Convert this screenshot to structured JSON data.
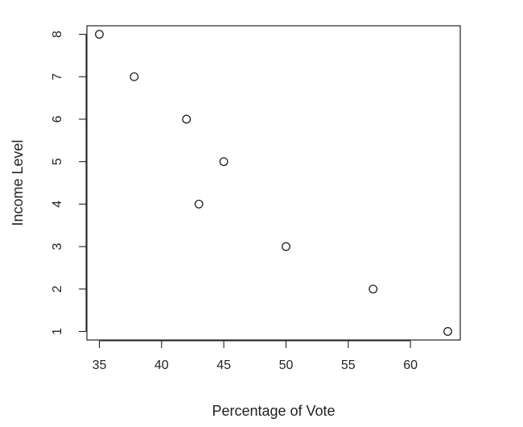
{
  "chart_data": {
    "type": "scatter",
    "title": "",
    "xlabel": "Percentage of Vote",
    "ylabel": "Income Level",
    "xlim": [
      34,
      64
    ],
    "ylim": [
      0.8,
      8.2
    ],
    "x_ticks": [
      35,
      40,
      45,
      50,
      55,
      60
    ],
    "y_ticks": [
      1,
      2,
      3,
      4,
      5,
      6,
      7,
      8
    ],
    "x_tick_labels": [
      "35",
      "40",
      "45",
      "50",
      "55",
      "60"
    ],
    "y_tick_labels": [
      "1",
      "2",
      "3",
      "4",
      "5",
      "6",
      "7",
      "8"
    ],
    "grid": false,
    "marker": "open-circle",
    "points": [
      {
        "x": 35,
        "y": 8
      },
      {
        "x": 37.8,
        "y": 7
      },
      {
        "x": 42,
        "y": 6
      },
      {
        "x": 45,
        "y": 5
      },
      {
        "x": 43,
        "y": 4
      },
      {
        "x": 50,
        "y": 3
      },
      {
        "x": 57,
        "y": 2
      },
      {
        "x": 63,
        "y": 1
      }
    ]
  }
}
